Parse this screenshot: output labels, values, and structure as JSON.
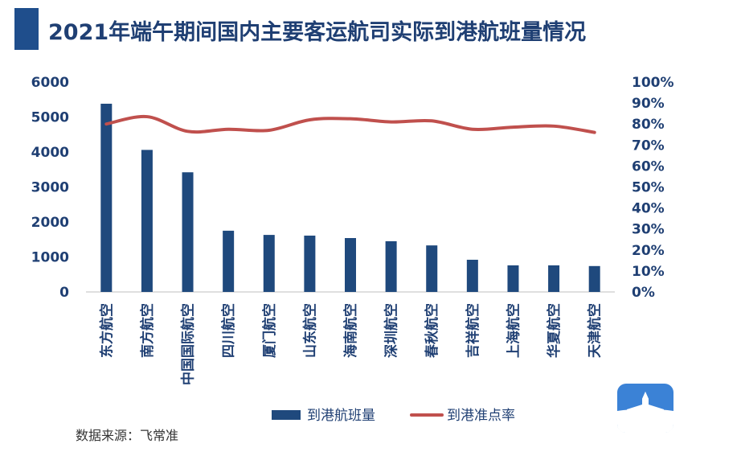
{
  "title": "2021年端午期间国内主要客运航司实际到港航班量情况",
  "source": "数据来源：飞常准",
  "colors": {
    "bar": "#1f497d",
    "line": "#c0504d",
    "title": "#1f3f73",
    "accent": "#1f4e8c",
    "logo": "#3b82d6"
  },
  "icons": {
    "logo": "airplane-logo-icon"
  },
  "chart_data": {
    "type": "bar",
    "categories": [
      "东方航空",
      "南方航空",
      "中国国际航空",
      "四川航空",
      "厦门航空",
      "山东航空",
      "海南航空",
      "深圳航空",
      "春秋航空",
      "吉祥航空",
      "上海航空",
      "华夏航空",
      "天津航空"
    ],
    "series": [
      {
        "name": "到港航班量",
        "type": "bar",
        "axis": "left",
        "values": [
          5380,
          4060,
          3420,
          1750,
          1630,
          1610,
          1540,
          1450,
          1330,
          920,
          760,
          760,
          740
        ]
      },
      {
        "name": "到港准点率",
        "type": "line",
        "axis": "right",
        "values": [
          0.8,
          0.835,
          0.765,
          0.775,
          0.77,
          0.82,
          0.825,
          0.81,
          0.815,
          0.775,
          0.785,
          0.79,
          0.76
        ]
      }
    ],
    "ylim_left": [
      0,
      6000
    ],
    "yticks_left": [
      "6000",
      "5000",
      "4000",
      "3000",
      "2000",
      "1000",
      "0"
    ],
    "ylim_right": [
      0,
      1
    ],
    "yticks_right": [
      "100%",
      "90%",
      "80%",
      "70%",
      "60%",
      "50%",
      "40%",
      "30%",
      "20%",
      "10%",
      "0%"
    ],
    "legend_position": "bottom",
    "grid": false
  }
}
